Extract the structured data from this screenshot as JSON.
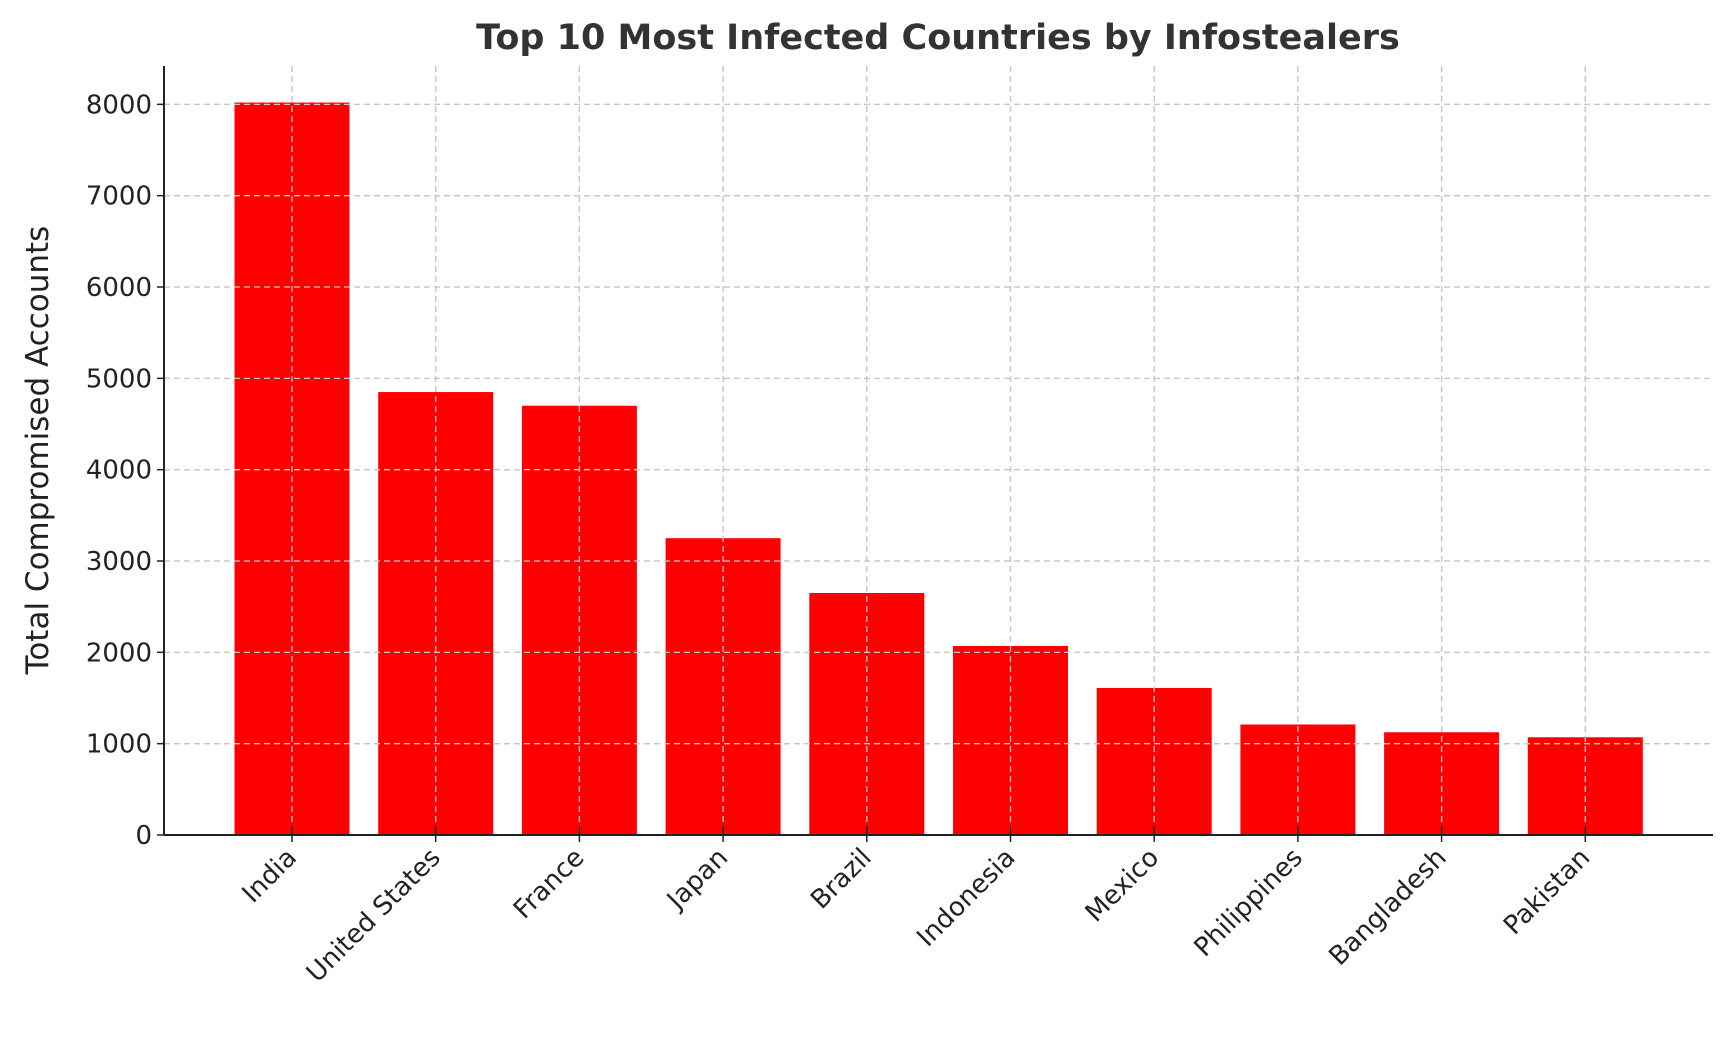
{
  "chart_data": {
    "type": "bar",
    "title": "Top 10 Most Infected Countries by Infostealers",
    "xlabel": "",
    "ylabel": "Total Compromised Accounts",
    "categories": [
      "India",
      "United States",
      "France",
      "Japan",
      "Brazil",
      "Indonesia",
      "Mexico",
      "Philippines",
      "Bangladesh",
      "Pakistan"
    ],
    "values": [
      8020,
      4850,
      4700,
      3250,
      2650,
      2070,
      1610,
      1210,
      1125,
      1070
    ],
    "ylim": [
      0,
      8420
    ],
    "yticks": [
      "0",
      "1000",
      "2000",
      "3000",
      "4000",
      "5000",
      "6000",
      "7000",
      "8000"
    ],
    "grid": true,
    "bar_color": "#ff0000"
  }
}
